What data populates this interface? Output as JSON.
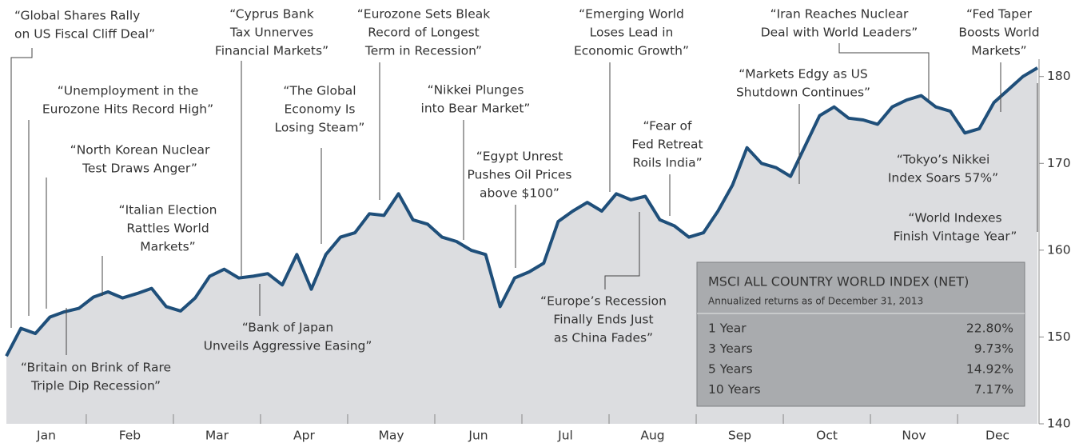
{
  "chart_data": {
    "type": "area",
    "categories": [
      "Jan",
      null,
      null,
      null,
      null,
      null,
      "Feb",
      null,
      null,
      null,
      null,
      null,
      "Mar",
      null,
      null,
      null,
      null,
      null,
      "Apr",
      null,
      null,
      null,
      null,
      null,
      "May",
      null,
      null,
      null,
      null,
      null,
      "Jun",
      null,
      null,
      null,
      null,
      null,
      "Jul",
      null,
      null,
      null,
      null,
      null,
      "Aug",
      null,
      null,
      null,
      null,
      null,
      "Sep",
      null,
      null,
      null,
      null,
      null,
      "Oct",
      null,
      null,
      null,
      null,
      null,
      "Nov",
      null,
      null,
      null,
      null,
      null,
      "Dec",
      null,
      null,
      null,
      null,
      null
    ],
    "values": [
      147.8,
      151,
      150.4,
      152.3,
      152.9,
      153.3,
      154.6,
      155.2,
      154.5,
      155,
      155.6,
      153.5,
      153,
      154.5,
      157,
      157.8,
      156.8,
      157,
      157.3,
      156,
      159.5,
      155.5,
      159.5,
      161.5,
      162,
      164.2,
      164,
      166.5,
      163.5,
      163,
      161.5,
      161,
      160,
      159.5,
      153.5,
      156.8,
      157.5,
      158.5,
      163.3,
      164.5,
      165.5,
      164.5,
      166.5,
      165.8,
      166.2,
      163.5,
      162.8,
      161.5,
      162,
      164.5,
      167.5,
      171.8,
      170,
      169.5,
      168.5,
      172,
      175.5,
      176.5,
      175.2,
      175,
      174.5,
      176.5,
      177.3,
      177.8,
      176.5,
      176,
      173.5,
      174,
      177,
      178.5,
      180,
      181
    ],
    "color": "#1f4f7a",
    "fill_color": "#dcdde0",
    "ylim": [
      140,
      182
    ],
    "yticks": [
      140,
      150,
      160,
      170,
      180
    ],
    "annotations": [
      {
        "lines": [
          "“Global Shares Rally",
          "on US Fiscal Cliff Deal”"
        ]
      },
      {
        "lines": [
          "“Unemployment in the",
          "Eurozone Hits Record High”"
        ]
      },
      {
        "lines": [
          "“North Korean Nuclear",
          "Test Draws Anger”"
        ]
      },
      {
        "lines": [
          "“Italian Election",
          "Rattles World",
          "Markets”"
        ]
      },
      {
        "lines": [
          "“Cyprus Bank",
          "Tax Unnerves",
          "Financial Markets”"
        ]
      },
      {
        "lines": [
          "“The Global",
          "Economy Is",
          "Losing Steam”"
        ]
      },
      {
        "lines": [
          "“Eurozone Sets Bleak",
          "Record of Longest",
          "Term in Recession”"
        ]
      },
      {
        "lines": [
          "“Nikkei Plunges",
          "into Bear Market”"
        ]
      },
      {
        "lines": [
          "“Egypt Unrest",
          "Pushes Oil Prices",
          "above $100”"
        ]
      },
      {
        "lines": [
          "“Emerging World",
          "Loses Lead in",
          "Economic Growth”"
        ]
      },
      {
        "lines": [
          "“Fear of",
          "Fed Retreat",
          "Roils India”"
        ]
      },
      {
        "lines": [
          "“Markets Edgy as US",
          "Shutdown Continues”"
        ]
      },
      {
        "lines": [
          "“Iran Reaches Nuclear",
          "Deal with World Leaders”"
        ]
      },
      {
        "lines": [
          "“Fed Taper",
          "Boosts World",
          "Markets”"
        ]
      },
      {
        "lines": [
          "“Tokyo’s Nikkei",
          "Index Soars 57%”"
        ]
      },
      {
        "lines": [
          "“World Indexes",
          "Finish Vintage Year”"
        ]
      },
      {
        "lines": [
          "“Bank of Japan",
          "Unveils Aggressive Easing”"
        ]
      },
      {
        "lines": [
          "“Britain on Brink of Rare",
          "Triple Dip Recession”"
        ]
      },
      {
        "lines": [
          "“Europe’s Recession",
          "Finally Ends Just",
          "as China Fades”"
        ]
      }
    ]
  },
  "table": {
    "title": "MSCI ALL COUNTRY WORLD INDEX (NET)",
    "subtitle": "Annualized returns as of December 31, 2013",
    "rows": [
      [
        "1 Year",
        "22.80%"
      ],
      [
        "3 Years",
        "9.73%"
      ],
      [
        "5 Years",
        "14.92%"
      ],
      [
        "10 Years",
        "7.17%"
      ]
    ]
  }
}
